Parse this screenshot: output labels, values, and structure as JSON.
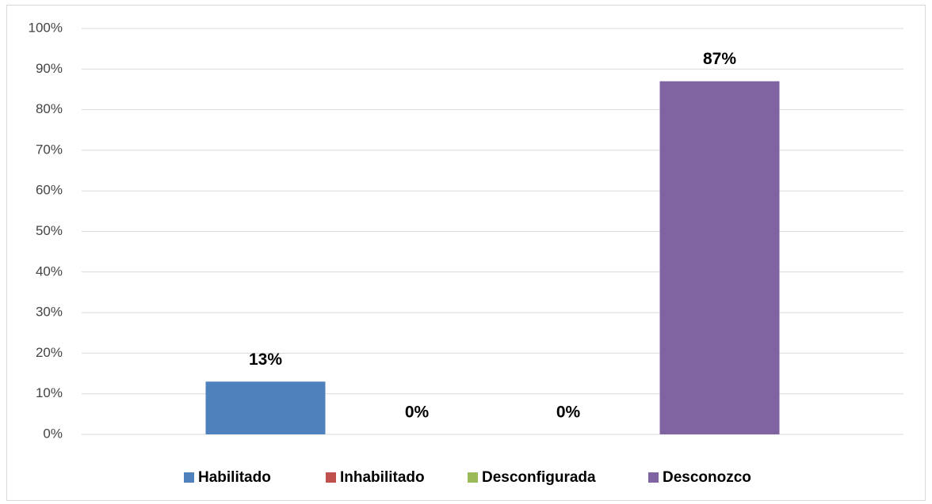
{
  "chart_data": {
    "type": "bar",
    "categories": [
      null
    ],
    "series": [
      {
        "name": "Habilitado",
        "color": "#4f81bd",
        "values": [
          13
        ],
        "value_labels": [
          "13%"
        ]
      },
      {
        "name": "Inhabilitado",
        "color": "#c0504d",
        "values": [
          0
        ],
        "value_labels": [
          "0%"
        ]
      },
      {
        "name": "Desconfigurada",
        "color": "#9bbb59",
        "values": [
          0
        ],
        "value_labels": [
          "0%"
        ]
      },
      {
        "name": "Desconozco",
        "color": "#8064a2",
        "values": [
          87
        ],
        "value_labels": [
          "87%"
        ]
      }
    ],
    "ylim": [
      0,
      100
    ],
    "yticks": [
      {
        "value": 0,
        "label": "0%"
      },
      {
        "value": 10,
        "label": "10%"
      },
      {
        "value": 20,
        "label": "20%"
      },
      {
        "value": 30,
        "label": "30%"
      },
      {
        "value": 40,
        "label": "40%"
      },
      {
        "value": 50,
        "label": "50%"
      },
      {
        "value": 60,
        "label": "60%"
      },
      {
        "value": 70,
        "label": "70%"
      },
      {
        "value": 80,
        "label": "80%"
      },
      {
        "value": 90,
        "label": "90%"
      },
      {
        "value": 100,
        "label": "100%"
      }
    ],
    "grid": true,
    "legend": "bottom"
  }
}
